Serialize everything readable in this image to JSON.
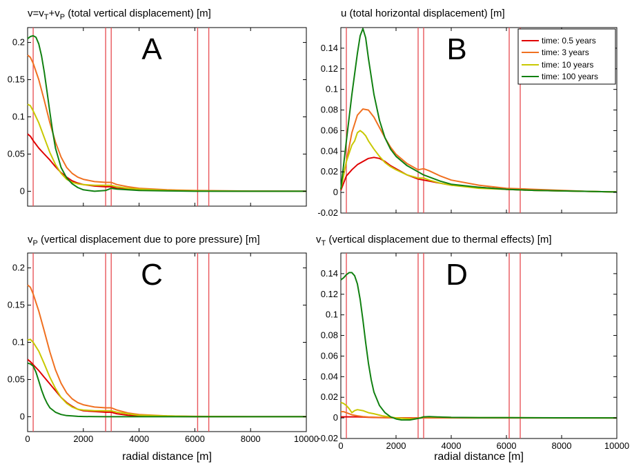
{
  "figure": {
    "xlabel": "radial distance [m]"
  },
  "colors": {
    "t05": "#e00000",
    "t3": "#f07020",
    "t10": "#c8c800",
    "t100": "#108010",
    "marker": "#e8555a"
  },
  "legend": [
    "time: 0.5 years",
    "time: 3 years",
    "time: 10 years",
    "time: 100 years"
  ],
  "chart_data": [
    {
      "id": "A",
      "type": "line",
      "letter": "A",
      "title": "v=v_T+v_P (total vertical displacement) [m]",
      "xlabel": "",
      "ylabel": "",
      "xlim": [
        0,
        10000
      ],
      "ylim": [
        -0.02,
        0.22
      ],
      "xticks": [
        2000,
        4000,
        6000,
        8000,
        10000
      ],
      "xticklabels_shown": false,
      "yticks": [
        0,
        0.05,
        0.1,
        0.15,
        0.2
      ],
      "vlines": [
        200,
        2800,
        3000,
        6100,
        6500
      ],
      "series": [
        {
          "name": "time: 0.5 years",
          "color_key": "t05",
          "x": [
            0,
            100,
            200,
            400,
            600,
            800,
            1000,
            1200,
            1400,
            1600,
            1800,
            2000,
            2400,
            2800,
            3000,
            3200,
            3600,
            4000,
            5000,
            6000,
            8000,
            10000
          ],
          "y": [
            0.077,
            0.074,
            0.068,
            0.058,
            0.05,
            0.042,
            0.033,
            0.025,
            0.019,
            0.014,
            0.011,
            0.009,
            0.007,
            0.006,
            0.006,
            0.004,
            0.003,
            0.002,
            0.001,
            0.0005,
            0,
            0
          ]
        },
        {
          "name": "time: 3 years",
          "color_key": "t3",
          "x": [
            0,
            100,
            200,
            400,
            600,
            800,
            1000,
            1200,
            1400,
            1600,
            1800,
            2000,
            2400,
            2800,
            3000,
            3200,
            3600,
            4000,
            5000,
            6000,
            8000,
            10000
          ],
          "y": [
            0.183,
            0.18,
            0.172,
            0.15,
            0.122,
            0.092,
            0.066,
            0.046,
            0.032,
            0.024,
            0.019,
            0.016,
            0.013,
            0.012,
            0.012,
            0.009,
            0.006,
            0.004,
            0.002,
            0.001,
            0.0003,
            0
          ]
        },
        {
          "name": "time: 10 years",
          "color_key": "t10",
          "x": [
            0,
            100,
            200,
            400,
            600,
            800,
            1000,
            1200,
            1400,
            1600,
            1800,
            2000,
            2400,
            2800,
            3000,
            3200,
            3600,
            4000,
            5000,
            6000,
            8000,
            10000
          ],
          "y": [
            0.117,
            0.115,
            0.108,
            0.092,
            0.072,
            0.052,
            0.036,
            0.024,
            0.016,
            0.012,
            0.01,
            0.009,
            0.008,
            0.008,
            0.008,
            0.006,
            0.004,
            0.003,
            0.001,
            0.0005,
            0,
            0
          ]
        },
        {
          "name": "time: 100 years",
          "color_key": "t100",
          "x": [
            0,
            100,
            200,
            300,
            400,
            500,
            600,
            700,
            800,
            900,
            1000,
            1200,
            1400,
            1600,
            1800,
            2000,
            2400,
            2800,
            3000,
            3200,
            3600,
            4000,
            5000,
            6000,
            8000,
            10000
          ],
          "y": [
            0.205,
            0.208,
            0.209,
            0.207,
            0.198,
            0.182,
            0.16,
            0.133,
            0.106,
            0.08,
            0.058,
            0.032,
            0.018,
            0.01,
            0.005,
            0.002,
            0.0,
            0.001,
            0.004,
            0.003,
            0.002,
            0.001,
            0.0005,
            0,
            0,
            0
          ]
        }
      ]
    },
    {
      "id": "B",
      "type": "line",
      "letter": "B",
      "title": "u (total horizontal displacement) [m]",
      "xlabel": "",
      "ylabel": "",
      "xlim": [
        0,
        10000
      ],
      "ylim": [
        -0.02,
        0.16
      ],
      "xticks": [
        2000,
        4000,
        6000,
        8000,
        10000
      ],
      "xticklabels_shown": false,
      "yticks": [
        -0.02,
        0,
        0.02,
        0.04,
        0.06,
        0.08,
        0.1,
        0.12,
        0.14
      ],
      "vlines": [
        200,
        2800,
        3000,
        6100,
        6500
      ],
      "legend_position": "top-right",
      "series": [
        {
          "name": "time: 0.5 years",
          "color_key": "t05",
          "x": [
            0,
            200,
            400,
            600,
            800,
            1000,
            1200,
            1400,
            1600,
            1800,
            2000,
            2400,
            2800,
            3000,
            3200,
            3600,
            4000,
            5000,
            6000,
            7000,
            8000,
            9000,
            10000
          ],
          "y": [
            0.002,
            0.016,
            0.022,
            0.027,
            0.03,
            0.033,
            0.034,
            0.033,
            0.03,
            0.026,
            0.023,
            0.017,
            0.013,
            0.012,
            0.011,
            0.009,
            0.007,
            0.005,
            0.003,
            0.002,
            0.0015,
            0.001,
            0.0005
          ]
        },
        {
          "name": "time: 3 years",
          "color_key": "t3",
          "x": [
            0,
            200,
            400,
            600,
            800,
            1000,
            1200,
            1400,
            1600,
            1800,
            2000,
            2400,
            2800,
            3000,
            3200,
            3600,
            4000,
            5000,
            6000,
            7000,
            8000,
            9000,
            10000
          ],
          "y": [
            0.003,
            0.03,
            0.058,
            0.075,
            0.081,
            0.08,
            0.073,
            0.063,
            0.053,
            0.044,
            0.037,
            0.028,
            0.022,
            0.023,
            0.021,
            0.016,
            0.012,
            0.007,
            0.004,
            0.003,
            0.002,
            0.001,
            0.0005
          ]
        },
        {
          "name": "time: 10 years",
          "color_key": "t10",
          "x": [
            0,
            200,
            400,
            500,
            600,
            700,
            800,
            900,
            1000,
            1200,
            1400,
            1600,
            1800,
            2000,
            2400,
            2800,
            3000,
            3200,
            3600,
            4000,
            5000,
            6000,
            7000,
            8000,
            9000,
            10000
          ],
          "y": [
            0.003,
            0.03,
            0.046,
            0.05,
            0.058,
            0.06,
            0.058,
            0.055,
            0.05,
            0.042,
            0.035,
            0.029,
            0.025,
            0.022,
            0.017,
            0.014,
            0.014,
            0.012,
            0.009,
            0.007,
            0.004,
            0.003,
            0.002,
            0.0015,
            0.001,
            0.0005
          ]
        },
        {
          "name": "time: 100 years",
          "color_key": "t100",
          "x": [
            0,
            200,
            400,
            600,
            700,
            800,
            900,
            1000,
            1200,
            1400,
            1600,
            1800,
            2000,
            2400,
            2800,
            3000,
            3200,
            3600,
            4000,
            5000,
            6000,
            7000,
            8000,
            9000,
            10000
          ],
          "y": [
            0.003,
            0.05,
            0.095,
            0.135,
            0.152,
            0.159,
            0.15,
            0.13,
            0.095,
            0.07,
            0.053,
            0.042,
            0.035,
            0.026,
            0.02,
            0.017,
            0.015,
            0.011,
            0.008,
            0.005,
            0.003,
            0.002,
            0.0015,
            0.001,
            0.0005
          ]
        }
      ]
    },
    {
      "id": "C",
      "type": "line",
      "letter": "C",
      "title": "v_P (vertical displacement due to pore pressure) [m]",
      "xlabel": "radial distance [m]",
      "ylabel": "",
      "xlim": [
        0,
        10000
      ],
      "ylim": [
        -0.02,
        0.22
      ],
      "xticks": [
        0,
        2000,
        4000,
        6000,
        8000,
        10000
      ],
      "xticklabels_shown": true,
      "yticks": [
        0,
        0.05,
        0.1,
        0.15,
        0.2
      ],
      "vlines": [
        200,
        2800,
        3000,
        6100,
        6500
      ],
      "series": [
        {
          "name": "time: 0.5 years",
          "color_key": "t05",
          "x": [
            0,
            100,
            200,
            400,
            600,
            800,
            1000,
            1200,
            1400,
            1600,
            1800,
            2000,
            2400,
            2800,
            3000,
            3200,
            3600,
            4000,
            5000,
            6000,
            8000,
            10000
          ],
          "y": [
            0.077,
            0.074,
            0.07,
            0.062,
            0.053,
            0.044,
            0.035,
            0.026,
            0.019,
            0.014,
            0.01,
            0.008,
            0.007,
            0.006,
            0.006,
            0.004,
            0.002,
            0.001,
            0.0005,
            0,
            0,
            0
          ]
        },
        {
          "name": "time: 3 years",
          "color_key": "t3",
          "x": [
            0,
            100,
            200,
            400,
            600,
            800,
            1000,
            1200,
            1400,
            1600,
            1800,
            2000,
            2400,
            2800,
            3000,
            3200,
            3600,
            4000,
            5000,
            6000,
            8000,
            10000
          ],
          "y": [
            0.177,
            0.174,
            0.165,
            0.142,
            0.115,
            0.087,
            0.063,
            0.045,
            0.032,
            0.024,
            0.019,
            0.016,
            0.013,
            0.012,
            0.012,
            0.009,
            0.005,
            0.003,
            0.001,
            0.0005,
            0,
            0
          ]
        },
        {
          "name": "time: 10 years",
          "color_key": "t10",
          "x": [
            0,
            100,
            200,
            400,
            600,
            800,
            1000,
            1200,
            1400,
            1600,
            1800,
            2000,
            2400,
            2800,
            3000,
            3200,
            3600,
            4000,
            5000,
            6000,
            8000,
            10000
          ],
          "y": [
            0.103,
            0.104,
            0.1,
            0.088,
            0.071,
            0.053,
            0.038,
            0.026,
            0.018,
            0.013,
            0.01,
            0.009,
            0.008,
            0.008,
            0.008,
            0.006,
            0.004,
            0.002,
            0.001,
            0.0003,
            0,
            0
          ]
        },
        {
          "name": "time: 100 years",
          "color_key": "t100",
          "x": [
            0,
            100,
            200,
            300,
            400,
            500,
            600,
            700,
            800,
            1000,
            1200,
            1400,
            1600,
            1800,
            2000,
            2400,
            2800,
            3000,
            3500,
            4000,
            5000,
            6000,
            8000,
            10000
          ],
          "y": [
            0.072,
            0.071,
            0.068,
            0.06,
            0.048,
            0.036,
            0.026,
            0.018,
            0.012,
            0.006,
            0.003,
            0.0015,
            0.001,
            0.0005,
            0.0003,
            0.0001,
            0,
            0,
            0,
            0,
            0,
            0,
            0,
            0
          ]
        }
      ]
    },
    {
      "id": "D",
      "type": "line",
      "letter": "D",
      "title": "v_T (vertical displacement due to thermal effects) [m]",
      "xlabel": "radial distance [m]",
      "ylabel": "",
      "xlim": [
        0,
        10000
      ],
      "ylim": [
        -0.02,
        0.16
      ],
      "xticks": [
        0,
        2000,
        4000,
        6000,
        8000,
        10000
      ],
      "xticklabels_shown": true,
      "yticks": [
        -0.02,
        0,
        0.02,
        0.04,
        0.06,
        0.08,
        0.1,
        0.12,
        0.14
      ],
      "vlines": [
        200,
        2800,
        3000,
        6100,
        6500
      ],
      "series": [
        {
          "name": "time: 0.5 years",
          "color_key": "t05",
          "x": [
            0,
            200,
            400,
            600,
            800,
            1000,
            1500,
            2000,
            2500,
            3000,
            4000,
            6000,
            8000,
            10000
          ],
          "y": [
            0.001,
            0.001,
            0.001,
            0.001,
            0.0008,
            0.0006,
            0.0003,
            0.0001,
            0,
            0,
            0,
            0,
            0,
            0
          ]
        },
        {
          "name": "time: 3 years",
          "color_key": "t3",
          "x": [
            0,
            100,
            200,
            300,
            400,
            600,
            800,
            1000,
            1500,
            2000,
            2500,
            3000,
            4000,
            6000,
            8000,
            10000
          ],
          "y": [
            0.006,
            0.006,
            0.005,
            0.004,
            0.003,
            0.002,
            0.0012,
            0.0008,
            0.0004,
            0.0001,
            -0.0003,
            0.0001,
            0.0001,
            0,
            0,
            0
          ]
        },
        {
          "name": "time: 10 years",
          "color_key": "t10",
          "x": [
            0,
            100,
            200,
            300,
            400,
            500,
            600,
            800,
            1000,
            1200,
            1500,
            2000,
            2500,
            2700,
            3000,
            3200,
            3600,
            4000,
            5000,
            6000,
            8000,
            10000
          ],
          "y": [
            0.015,
            0.014,
            0.012,
            0.009,
            0.005,
            0.007,
            0.008,
            0.007,
            0.005,
            0.004,
            0.002,
            0.0,
            -0.001,
            -0.001,
            0.001,
            0.001,
            0.0008,
            0.0005,
            0.0003,
            0.0002,
            0,
            0
          ]
        },
        {
          "name": "time: 100 years",
          "color_key": "t100",
          "x": [
            0,
            100,
            200,
            300,
            400,
            500,
            600,
            700,
            800,
            900,
            1000,
            1100,
            1200,
            1400,
            1600,
            1800,
            2000,
            2200,
            2500,
            2700,
            2900,
            3000,
            3200,
            3600,
            4000,
            5000,
            6000,
            8000,
            10000
          ],
          "y": [
            0.134,
            0.136,
            0.139,
            0.141,
            0.141,
            0.138,
            0.13,
            0.115,
            0.095,
            0.073,
            0.053,
            0.037,
            0.025,
            0.012,
            0.005,
            0.001,
            -0.001,
            -0.002,
            -0.002,
            -0.001,
            0.0,
            0.001,
            0.0012,
            0.0008,
            0.0005,
            0.0003,
            0.0002,
            0.0001,
            0
          ]
        }
      ]
    }
  ]
}
